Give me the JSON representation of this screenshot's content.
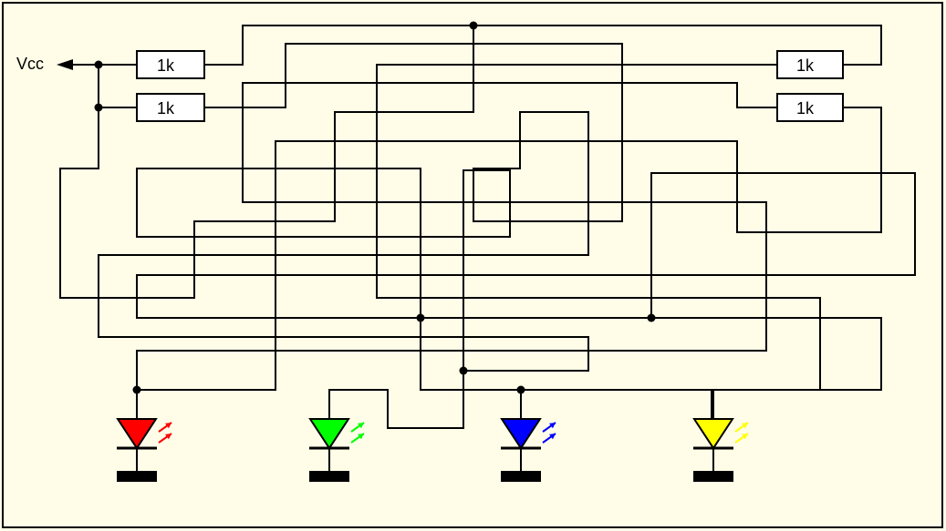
{
  "supply_label": "Vcc",
  "resistors": [
    {
      "id": "r1",
      "label": "1k"
    },
    {
      "id": "r2",
      "label": "1k"
    },
    {
      "id": "r3",
      "label": "1k"
    },
    {
      "id": "r4",
      "label": "1k"
    }
  ],
  "leds": [
    {
      "id": "led-red",
      "color": "#ff0000"
    },
    {
      "id": "led-green",
      "color": "#00ff00"
    },
    {
      "id": "led-blue",
      "color": "#0000ff"
    },
    {
      "id": "led-yellow",
      "color": "#ffff00"
    }
  ],
  "colors": {
    "background": "#fffde8",
    "wire": "#000000",
    "resistor_fill": "#ffffff"
  }
}
